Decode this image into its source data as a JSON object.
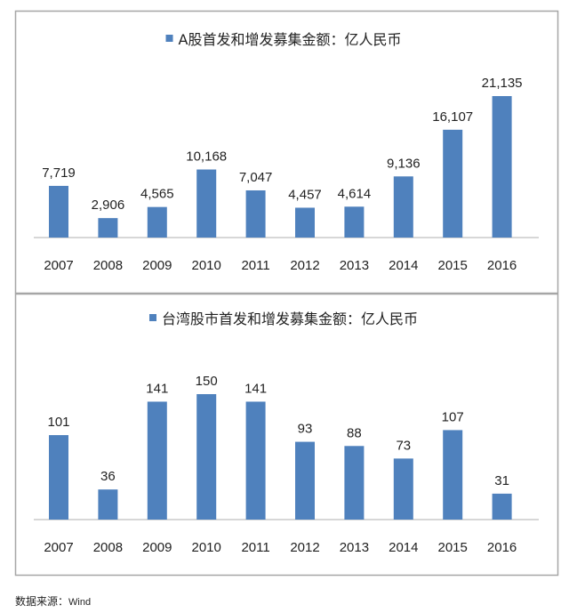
{
  "chart_data": [
    {
      "type": "bar",
      "title": "A股首发和增发募集金额：亿人民币",
      "categories": [
        "2007",
        "2008",
        "2009",
        "2010",
        "2011",
        "2012",
        "2013",
        "2014",
        "2015",
        "2016"
      ],
      "values": [
        7719,
        2906,
        4565,
        10168,
        7047,
        4457,
        4614,
        9136,
        16107,
        21135
      ],
      "value_labels": [
        "7,719",
        "2,906",
        "4,565",
        "10,168",
        "7,047",
        "4,457",
        "4,614",
        "9,136",
        "16,107",
        "21,135"
      ],
      "legend": "top",
      "grid": false,
      "color": "#4f81bd"
    },
    {
      "type": "bar",
      "title": "台湾股市首发和增发募集金额：亿人民币",
      "categories": [
        "2007",
        "2008",
        "2009",
        "2010",
        "2011",
        "2012",
        "2013",
        "2014",
        "2015",
        "2016"
      ],
      "values": [
        101,
        36,
        141,
        150,
        141,
        93,
        88,
        73,
        107,
        31
      ],
      "value_labels": [
        "101",
        "36",
        "141",
        "150",
        "141",
        "93",
        "88",
        "73",
        "107",
        "31"
      ],
      "legend": "top",
      "grid": false,
      "color": "#4f81bd"
    }
  ],
  "source": {
    "label": "数据来源：",
    "value": "Wind"
  }
}
